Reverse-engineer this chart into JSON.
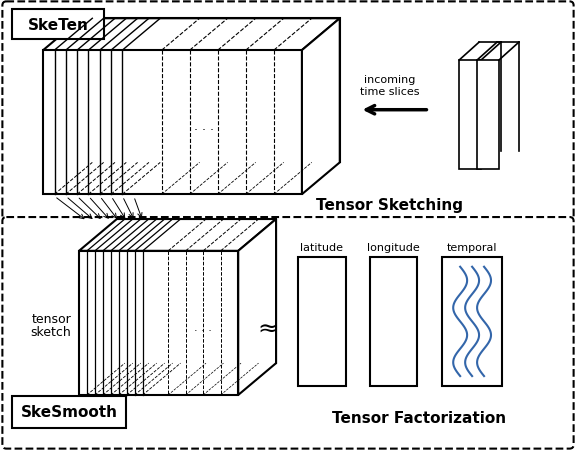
{
  "bg_color": "#ffffff",
  "fig_width": 5.76,
  "fig_height": 4.52,
  "top_box_label": "SkeTen",
  "bottom_box_label": "SkeSmooth",
  "tensor_sketch_label1": "tensor",
  "tensor_sketch_label2": "sketch",
  "tensor_sketching_label": "Tensor Sketching",
  "tensor_factorization_label": "Tensor Factorization",
  "incoming_label": "incoming\ntime slices",
  "approx_symbol": "≈",
  "latitude_label": "latitude",
  "longitude_label": "longitude",
  "temporal_label": "temporal",
  "dots": "· · ·",
  "blue_color": "#3366AA",
  "line_color": "#000000"
}
